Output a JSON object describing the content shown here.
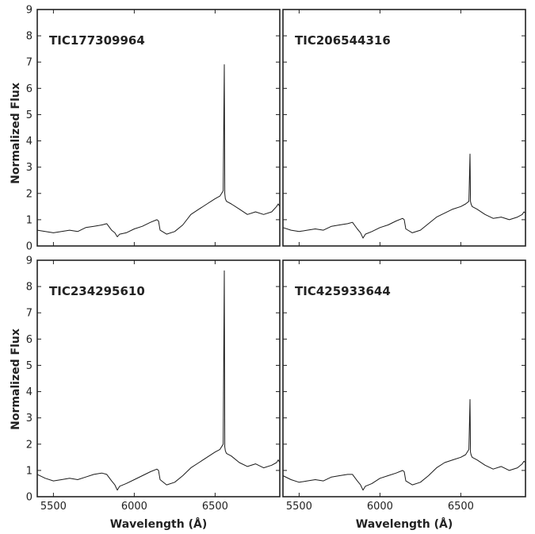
{
  "figure": {
    "ylabel": "Normalized Flux",
    "xlabel": "Wavelength (Å)"
  },
  "chart_data": [
    {
      "type": "line",
      "title": "TIC177309964",
      "xlim": [
        5400,
        6900
      ],
      "ylim": [
        0,
        9
      ],
      "xticks": [
        5500,
        6000,
        6500
      ],
      "yticks": [
        0,
        1,
        2,
        3,
        4,
        5,
        6,
        7,
        8,
        9
      ],
      "x": [
        5400,
        5450,
        5500,
        5550,
        5600,
        5650,
        5700,
        5750,
        5800,
        5830,
        5860,
        5880,
        5895,
        5910,
        5950,
        6000,
        6050,
        6100,
        6140,
        6150,
        6160,
        6200,
        6250,
        6300,
        6350,
        6400,
        6450,
        6500,
        6530,
        6550,
        6557,
        6560,
        6563,
        6570,
        6600,
        6650,
        6700,
        6750,
        6800,
        6850,
        6880,
        6890,
        6900
      ],
      "y": [
        0.6,
        0.55,
        0.5,
        0.55,
        0.6,
        0.55,
        0.7,
        0.75,
        0.8,
        0.85,
        0.6,
        0.5,
        0.35,
        0.45,
        0.5,
        0.65,
        0.75,
        0.9,
        1.0,
        0.95,
        0.6,
        0.45,
        0.55,
        0.8,
        1.2,
        1.4,
        1.6,
        1.8,
        1.9,
        2.1,
        6.9,
        2.0,
        1.8,
        1.7,
        1.6,
        1.4,
        1.2,
        1.3,
        1.2,
        1.3,
        1.5,
        1.6,
        1.5
      ]
    },
    {
      "type": "line",
      "title": "TIC206544316",
      "xlim": [
        5400,
        6900
      ],
      "ylim": [
        0,
        9
      ],
      "xticks": [
        5500,
        6000,
        6500
      ],
      "yticks": [
        0,
        1,
        2,
        3,
        4,
        5,
        6,
        7,
        8,
        9
      ],
      "x": [
        5400,
        5450,
        5500,
        5550,
        5600,
        5650,
        5700,
        5750,
        5800,
        5830,
        5860,
        5880,
        5895,
        5910,
        5950,
        6000,
        6050,
        6100,
        6140,
        6150,
        6160,
        6200,
        6250,
        6300,
        6350,
        6400,
        6450,
        6500,
        6530,
        6550,
        6557,
        6560,
        6563,
        6570,
        6600,
        6650,
        6700,
        6750,
        6800,
        6850,
        6880,
        6890,
        6900
      ],
      "y": [
        0.7,
        0.6,
        0.55,
        0.6,
        0.65,
        0.6,
        0.75,
        0.8,
        0.85,
        0.9,
        0.65,
        0.5,
        0.3,
        0.45,
        0.55,
        0.7,
        0.8,
        0.95,
        1.05,
        1.0,
        0.65,
        0.5,
        0.6,
        0.85,
        1.1,
        1.25,
        1.4,
        1.5,
        1.6,
        1.7,
        3.5,
        1.7,
        1.6,
        1.5,
        1.4,
        1.2,
        1.05,
        1.1,
        1.0,
        1.1,
        1.2,
        1.3,
        1.25
      ]
    },
    {
      "type": "line",
      "title": "TIC234295610",
      "xlim": [
        5400,
        6900
      ],
      "ylim": [
        0,
        9
      ],
      "xticks": [
        5500,
        6000,
        6500
      ],
      "yticks": [
        0,
        1,
        2,
        3,
        4,
        5,
        6,
        7,
        8,
        9
      ],
      "x": [
        5400,
        5450,
        5500,
        5550,
        5600,
        5650,
        5700,
        5750,
        5800,
        5830,
        5860,
        5880,
        5895,
        5910,
        5950,
        6000,
        6050,
        6100,
        6140,
        6150,
        6160,
        6200,
        6250,
        6300,
        6350,
        6400,
        6450,
        6500,
        6530,
        6550,
        6557,
        6560,
        6563,
        6570,
        6600,
        6650,
        6700,
        6750,
        6800,
        6850,
        6880,
        6890,
        6900
      ],
      "y": [
        0.85,
        0.7,
        0.6,
        0.65,
        0.7,
        0.65,
        0.75,
        0.85,
        0.9,
        0.85,
        0.6,
        0.45,
        0.25,
        0.4,
        0.5,
        0.65,
        0.8,
        0.95,
        1.05,
        1.0,
        0.65,
        0.45,
        0.55,
        0.8,
        1.1,
        1.3,
        1.5,
        1.7,
        1.8,
        2.0,
        8.6,
        1.9,
        1.75,
        1.65,
        1.55,
        1.3,
        1.15,
        1.25,
        1.1,
        1.2,
        1.3,
        1.4,
        1.3
      ]
    },
    {
      "type": "line",
      "title": "TIC425933644",
      "xlim": [
        5400,
        6900
      ],
      "ylim": [
        0,
        9
      ],
      "xticks": [
        5500,
        6000,
        6500
      ],
      "yticks": [
        0,
        1,
        2,
        3,
        4,
        5,
        6,
        7,
        8,
        9
      ],
      "x": [
        5400,
        5450,
        5500,
        5550,
        5600,
        5650,
        5700,
        5750,
        5800,
        5830,
        5860,
        5880,
        5895,
        5910,
        5950,
        6000,
        6050,
        6100,
        6140,
        6150,
        6160,
        6200,
        6250,
        6300,
        6350,
        6400,
        6450,
        6500,
        6530,
        6550,
        6557,
        6560,
        6563,
        6570,
        6600,
        6650,
        6700,
        6750,
        6800,
        6850,
        6880,
        6890,
        6900
      ],
      "y": [
        0.8,
        0.65,
        0.55,
        0.6,
        0.65,
        0.6,
        0.75,
        0.8,
        0.85,
        0.85,
        0.6,
        0.45,
        0.25,
        0.4,
        0.5,
        0.7,
        0.8,
        0.9,
        1.0,
        0.95,
        0.6,
        0.45,
        0.55,
        0.8,
        1.1,
        1.3,
        1.4,
        1.5,
        1.6,
        1.8,
        3.7,
        1.7,
        1.6,
        1.5,
        1.4,
        1.2,
        1.05,
        1.15,
        1.0,
        1.1,
        1.25,
        1.35,
        1.3
      ]
    }
  ]
}
